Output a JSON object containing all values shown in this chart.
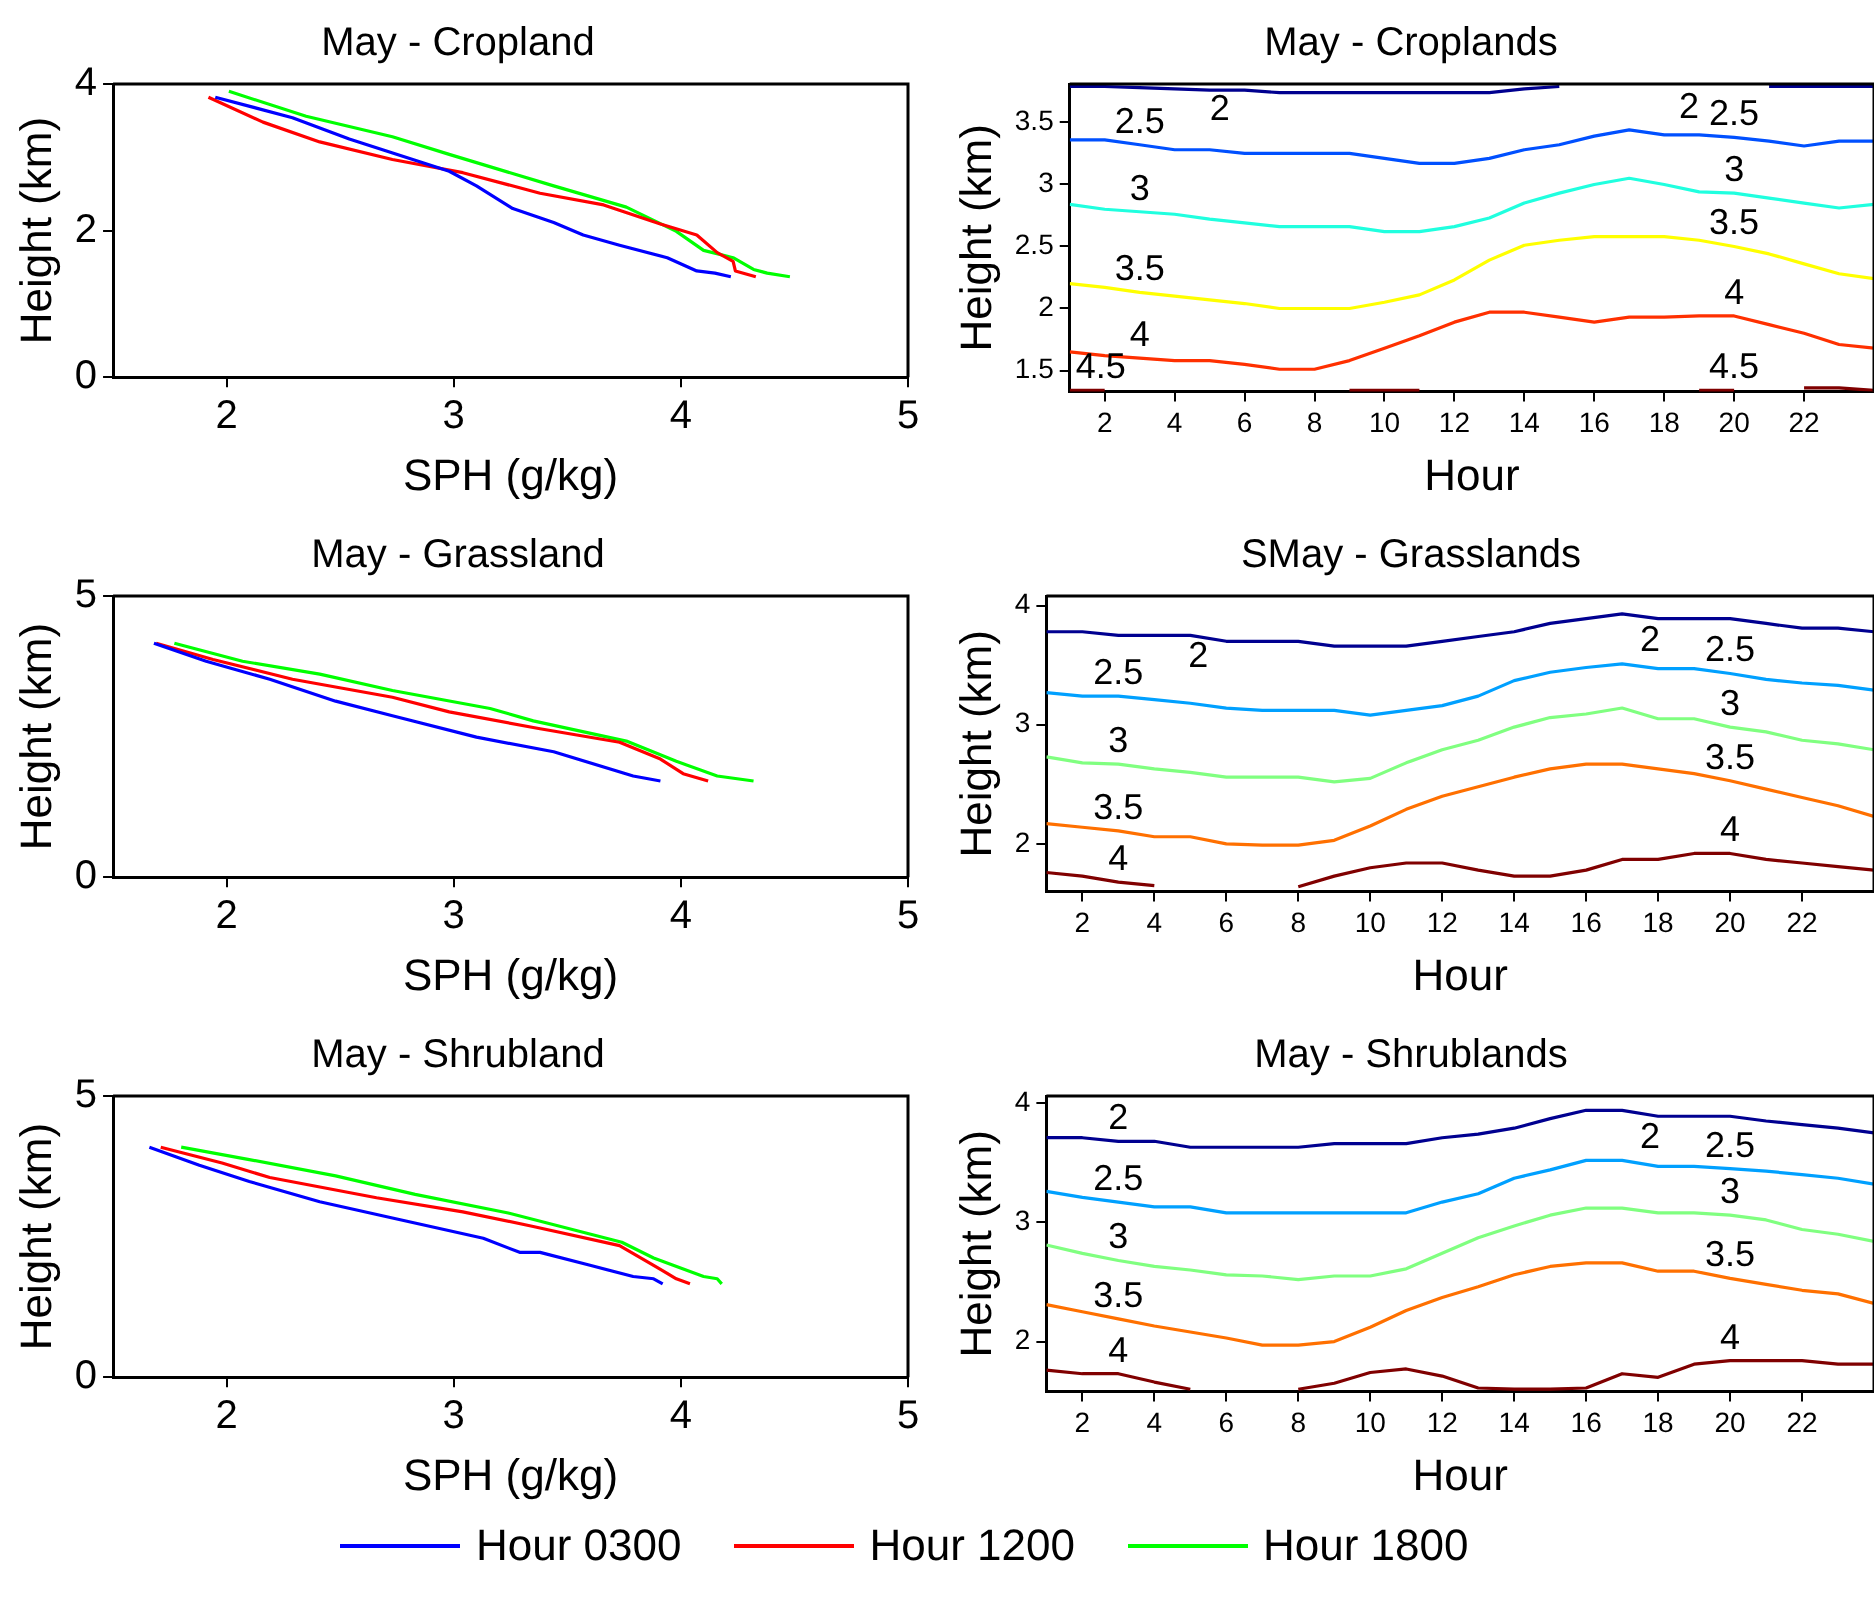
{
  "chart_data": [
    {
      "type": "line",
      "title": "May - Cropland",
      "xlabel": "SPH (g/kg)",
      "ylabel": "Height (km)",
      "xlim": [
        1.5,
        5
      ],
      "xticks": [
        2,
        3,
        4,
        5
      ],
      "ylim": [
        0,
        4
      ],
      "yticks": [
        0,
        2,
        4
      ],
      "series": [
        {
          "color": "#0000ff",
          "x": [
            1.95,
            2.29,
            2.54,
            2.98,
            3.1,
            3.26,
            3.44,
            3.57,
            3.73,
            3.94,
            4.07,
            4.15,
            4.22
          ],
          "values": [
            3.82,
            3.54,
            3.25,
            2.81,
            2.61,
            2.3,
            2.11,
            1.94,
            1.8,
            1.63,
            1.45,
            1.42,
            1.37
          ]
        },
        {
          "color": "#ff0000",
          "x": [
            1.92,
            2.16,
            2.41,
            2.73,
            3.04,
            3.38,
            3.66,
            3.91,
            4.07,
            4.16,
            4.23,
            4.24,
            4.33
          ],
          "values": [
            3.82,
            3.48,
            3.21,
            2.97,
            2.79,
            2.51,
            2.35,
            2.09,
            1.94,
            1.7,
            1.58,
            1.45,
            1.37
          ]
        },
        {
          "color": "#00ff00",
          "x": [
            2.01,
            2.35,
            2.73,
            2.98,
            3.44,
            3.76,
            3.98,
            4.1,
            4.23,
            4.32,
            4.38,
            4.48
          ],
          "values": [
            3.9,
            3.56,
            3.28,
            3.04,
            2.61,
            2.32,
            1.99,
            1.73,
            1.63,
            1.47,
            1.42,
            1.37
          ]
        }
      ]
    },
    {
      "type": "line",
      "title": "May - Croplands",
      "xlabel": "Hour",
      "ylabel": "Height (km)",
      "x": [
        1,
        2,
        3,
        4,
        5,
        6,
        7,
        8,
        9,
        10,
        11,
        12,
        13,
        14,
        15,
        16,
        17,
        18,
        19,
        20,
        21,
        22,
        23,
        24
      ],
      "xlim": [
        1,
        24
      ],
      "xticks": [
        2,
        4,
        6,
        8,
        10,
        12,
        14,
        16,
        18,
        20,
        22
      ],
      "ylim": [
        1.33,
        3.81
      ],
      "yticks": [
        1.5,
        2,
        2.5,
        3,
        3.5
      ],
      "series": [
        {
          "name": "2",
          "color": "#00008f",
          "values": [
            3.79,
            3.79,
            3.78,
            3.77,
            3.76,
            3.76,
            3.74,
            3.74,
            3.74,
            3.74,
            3.74,
            3.74,
            3.74,
            3.77,
            3.79,
            null,
            null,
            null,
            null,
            null,
            3.79,
            3.79,
            3.79,
            3.79
          ]
        },
        {
          "name": "2.5",
          "color": "#0050ff",
          "values": [
            3.36,
            3.36,
            3.32,
            3.28,
            3.28,
            3.25,
            3.25,
            3.25,
            3.25,
            3.21,
            3.17,
            3.17,
            3.21,
            3.28,
            3.32,
            3.39,
            3.44,
            3.4,
            3.4,
            3.38,
            3.35,
            3.31,
            3.35,
            3.35
          ]
        },
        {
          "name": "3",
          "color": "#20ffdf",
          "values": [
            2.84,
            2.8,
            2.78,
            2.76,
            2.72,
            2.69,
            2.66,
            2.66,
            2.66,
            2.62,
            2.62,
            2.66,
            2.73,
            2.85,
            2.93,
            3.0,
            3.05,
            3.0,
            2.94,
            2.93,
            2.89,
            2.85,
            2.81,
            2.84
          ]
        },
        {
          "name": "3.5",
          "color": "#ffff00",
          "values": [
            2.2,
            2.17,
            2.13,
            2.1,
            2.07,
            2.04,
            2.0,
            2.0,
            2.0,
            2.05,
            2.11,
            2.23,
            2.39,
            2.51,
            2.55,
            2.58,
            2.58,
            2.58,
            2.55,
            2.5,
            2.44,
            2.36,
            2.28,
            2.24
          ]
        },
        {
          "name": "4",
          "color": "#ff3000",
          "values": [
            1.65,
            1.62,
            1.6,
            1.58,
            1.58,
            1.55,
            1.51,
            1.51,
            1.58,
            1.68,
            1.78,
            1.89,
            1.97,
            1.97,
            1.93,
            1.89,
            1.93,
            1.93,
            1.94,
            1.94,
            1.87,
            1.8,
            1.71,
            1.68
          ]
        },
        {
          "name": "4.5",
          "color": "#800000",
          "values": [
            1.34,
            1.34,
            null,
            null,
            null,
            null,
            null,
            null,
            1.34,
            1.34,
            1.34,
            null,
            null,
            null,
            null,
            null,
            null,
            null,
            1.34,
            1.34,
            null,
            1.36,
            1.36,
            1.34
          ]
        }
      ]
    },
    {
      "type": "line",
      "title": "May - Grassland",
      "xlabel": "SPH (g/kg)",
      "ylabel": "Height (km)",
      "xlim": [
        1.5,
        5
      ],
      "xticks": [
        2,
        3,
        4,
        5
      ],
      "ylim": [
        0,
        5
      ],
      "yticks": [
        0,
        5
      ],
      "series": [
        {
          "color": "#0000ff",
          "x": [
            1.68,
            1.91,
            2.19,
            2.48,
            2.73,
            3.1,
            3.44,
            3.79,
            3.91
          ],
          "values": [
            4.16,
            3.84,
            3.52,
            3.13,
            2.87,
            2.49,
            2.23,
            1.8,
            1.71
          ]
        },
        {
          "color": "#ff0000",
          "x": [
            1.69,
            1.94,
            2.29,
            2.73,
            2.98,
            3.38,
            3.73,
            3.91,
            4.01,
            4.12
          ],
          "values": [
            4.16,
            3.87,
            3.52,
            3.2,
            2.94,
            2.64,
            2.4,
            2.1,
            1.84,
            1.71
          ]
        },
        {
          "color": "#00ff00",
          "x": [
            1.77,
            2.07,
            2.41,
            2.73,
            3.16,
            3.35,
            3.76,
            3.98,
            4.16,
            4.32
          ],
          "values": [
            4.16,
            3.84,
            3.61,
            3.32,
            3.0,
            2.78,
            2.42,
            2.06,
            1.8,
            1.71
          ]
        }
      ]
    },
    {
      "type": "line",
      "title": "SMay - Grasslands",
      "xlabel": "Hour",
      "ylabel": "Height (km)",
      "x": [
        1,
        2,
        3,
        4,
        5,
        6,
        7,
        8,
        9,
        10,
        11,
        12,
        13,
        14,
        15,
        16,
        17,
        18,
        19,
        20,
        21,
        22,
        23,
        24
      ],
      "xlim": [
        1,
        24
      ],
      "xticks": [
        2,
        4,
        6,
        8,
        10,
        12,
        14,
        16,
        18,
        20,
        22
      ],
      "ylim": [
        1.6,
        4.08
      ],
      "yticks": [
        2,
        3,
        4
      ],
      "series": [
        {
          "name": "2",
          "color": "#000090",
          "values": [
            3.78,
            3.78,
            3.75,
            3.75,
            3.75,
            3.7,
            3.7,
            3.7,
            3.66,
            3.66,
            3.66,
            3.7,
            3.74,
            3.78,
            3.85,
            3.89,
            3.93,
            3.89,
            3.89,
            3.89,
            3.85,
            3.81,
            3.81,
            3.78
          ]
        },
        {
          "name": "2.5",
          "color": "#00a0ff",
          "values": [
            3.27,
            3.24,
            3.24,
            3.21,
            3.18,
            3.14,
            3.12,
            3.12,
            3.12,
            3.08,
            3.12,
            3.16,
            3.24,
            3.37,
            3.44,
            3.48,
            3.51,
            3.47,
            3.47,
            3.43,
            3.38,
            3.35,
            3.33,
            3.29
          ]
        },
        {
          "name": "3",
          "color": "#80ff80",
          "values": [
            2.73,
            2.68,
            2.67,
            2.63,
            2.6,
            2.56,
            2.56,
            2.56,
            2.52,
            2.55,
            2.68,
            2.79,
            2.87,
            2.98,
            3.06,
            3.09,
            3.14,
            3.05,
            3.05,
            2.98,
            2.94,
            2.87,
            2.84,
            2.79
          ]
        },
        {
          "name": "3.5",
          "color": "#ff7000",
          "values": [
            2.17,
            2.14,
            2.11,
            2.06,
            2.06,
            2.0,
            1.99,
            1.99,
            2.03,
            2.15,
            2.29,
            2.4,
            2.48,
            2.56,
            2.63,
            2.67,
            2.67,
            2.63,
            2.59,
            2.53,
            2.46,
            2.39,
            2.32,
            2.23
          ]
        },
        {
          "name": "4",
          "color": "#800000",
          "values": [
            1.76,
            1.73,
            1.68,
            1.65,
            null,
            null,
            null,
            1.64,
            1.73,
            1.8,
            1.84,
            1.84,
            1.78,
            1.73,
            1.73,
            1.78,
            1.87,
            1.87,
            1.92,
            1.92,
            1.87,
            1.84,
            1.81,
            1.78
          ]
        }
      ]
    },
    {
      "type": "line",
      "title": "May - Shrubland",
      "xlabel": "SPH (g/kg)",
      "ylabel": "Height (km)",
      "xlim": [
        1.5,
        5
      ],
      "xticks": [
        2,
        3,
        4,
        5
      ],
      "ylim": [
        0,
        5
      ],
      "yticks": [
        0,
        5
      ],
      "legend": "bottom",
      "series": [
        {
          "name": "Hour 0300",
          "color": "#0000ff",
          "x": [
            1.66,
            1.88,
            2.1,
            2.41,
            2.73,
            3.13,
            3.29,
            3.38,
            3.6,
            3.79,
            3.88,
            3.92
          ],
          "values": [
            4.09,
            3.77,
            3.48,
            3.12,
            2.83,
            2.47,
            2.22,
            2.22,
            1.99,
            1.79,
            1.75,
            1.66
          ]
        },
        {
          "name": "Hour 1200",
          "color": "#ff0000",
          "x": [
            1.71,
            1.98,
            2.19,
            2.66,
            3.04,
            3.35,
            3.73,
            3.88,
            3.98,
            4.04
          ],
          "values": [
            4.09,
            3.81,
            3.55,
            3.19,
            2.94,
            2.68,
            2.34,
            1.99,
            1.75,
            1.66
          ]
        },
        {
          "name": "Hour 1800",
          "color": "#00ff00",
          "x": [
            1.8,
            2.1,
            2.48,
            2.83,
            3.24,
            3.74,
            3.88,
            4.1,
            4.16,
            4.18
          ],
          "values": [
            4.09,
            3.87,
            3.58,
            3.25,
            2.92,
            2.4,
            2.12,
            1.79,
            1.75,
            1.66
          ]
        }
      ]
    },
    {
      "type": "line",
      "title": "May - Shrublands",
      "xlabel": "Hour",
      "ylabel": "Height (km)",
      "x": [
        1,
        2,
        3,
        4,
        5,
        6,
        7,
        8,
        9,
        10,
        11,
        12,
        13,
        14,
        15,
        16,
        17,
        18,
        19,
        20,
        21,
        22,
        23,
        24
      ],
      "xlim": [
        1,
        24
      ],
      "xticks": [
        2,
        4,
        6,
        8,
        10,
        12,
        14,
        16,
        18,
        20,
        22
      ],
      "ylim": [
        1.58,
        4.06
      ],
      "yticks": [
        2,
        3,
        4
      ],
      "series": [
        {
          "name": "2",
          "color": "#000090",
          "values": [
            3.71,
            3.71,
            3.68,
            3.68,
            3.63,
            3.63,
            3.63,
            3.63,
            3.66,
            3.66,
            3.66,
            3.71,
            3.74,
            3.79,
            3.87,
            3.94,
            3.94,
            3.89,
            3.89,
            3.89,
            3.85,
            3.82,
            3.79,
            3.75
          ]
        },
        {
          "name": "2.5",
          "color": "#00a0ff",
          "values": [
            3.26,
            3.21,
            3.17,
            3.13,
            3.13,
            3.08,
            3.08,
            3.08,
            3.08,
            3.08,
            3.08,
            3.17,
            3.24,
            3.37,
            3.44,
            3.52,
            3.52,
            3.47,
            3.47,
            3.45,
            3.43,
            3.4,
            3.37,
            3.32
          ]
        },
        {
          "name": "3",
          "color": "#80ff80",
          "values": [
            2.81,
            2.74,
            2.68,
            2.63,
            2.6,
            2.56,
            2.55,
            2.52,
            2.55,
            2.55,
            2.61,
            2.74,
            2.87,
            2.97,
            3.06,
            3.12,
            3.12,
            3.08,
            3.08,
            3.06,
            3.02,
            2.94,
            2.9,
            2.84
          ]
        },
        {
          "name": "3.5",
          "color": "#ff7000",
          "values": [
            2.31,
            2.25,
            2.19,
            2.13,
            2.08,
            2.03,
            1.97,
            1.97,
            2.0,
            2.12,
            2.26,
            2.37,
            2.46,
            2.56,
            2.63,
            2.66,
            2.66,
            2.59,
            2.59,
            2.53,
            2.48,
            2.43,
            2.4,
            2.32
          ]
        },
        {
          "name": "4",
          "color": "#800000",
          "values": [
            1.76,
            1.73,
            1.73,
            1.66,
            1.6,
            null,
            null,
            1.6,
            1.65,
            1.74,
            1.77,
            1.71,
            1.61,
            1.6,
            1.6,
            1.61,
            1.73,
            1.7,
            1.81,
            1.84,
            1.84,
            1.84,
            1.81,
            1.81
          ]
        }
      ]
    }
  ]
}
